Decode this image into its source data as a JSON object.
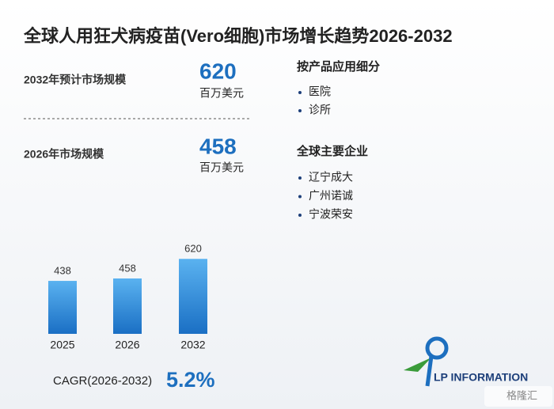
{
  "title": "全球人用狂犬病疫苗(Vero细胞)市场增长趋势2026-2032",
  "stats": [
    {
      "label": "2032年预计市场规模",
      "value": "620",
      "unit": "百万美元"
    },
    {
      "label": "2026年市场规模",
      "value": "458",
      "unit": "百万美元"
    }
  ],
  "segments": {
    "title": "按产品应用细分",
    "items": [
      "医院",
      "诊所"
    ]
  },
  "companies": {
    "title": "全球主要企业",
    "items": [
      "辽宁成大",
      "广州诺诚",
      "宁波荣安"
    ]
  },
  "chart_data": {
    "type": "bar",
    "categories": [
      "2025",
      "2026",
      "2032"
    ],
    "values": [
      438,
      458,
      620
    ],
    "ylim": [
      0,
      700
    ],
    "color": "#2a86d6"
  },
  "cagr": {
    "label": "CAGR(2026-2032)",
    "value": "5.2%"
  },
  "logo": "LP INFORMATION",
  "corner_mark": "格隆汇"
}
